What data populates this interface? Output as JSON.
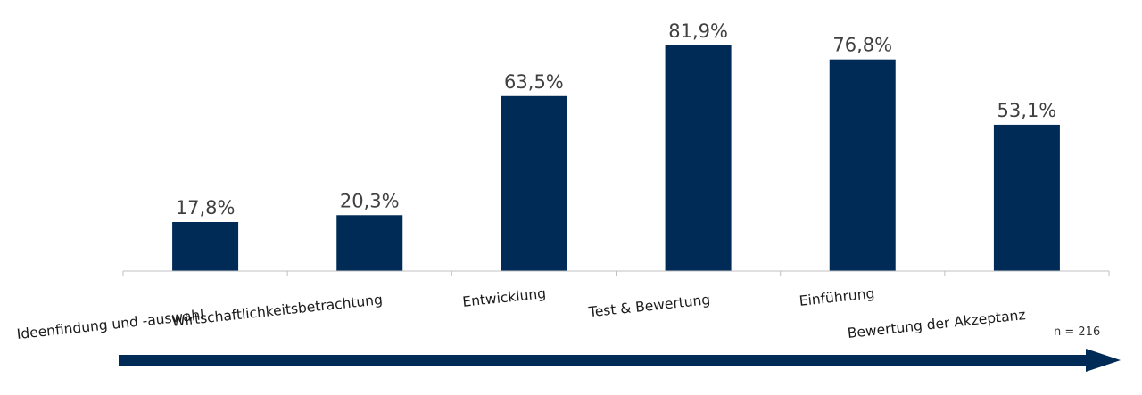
{
  "chart_data": {
    "type": "bar",
    "categories": [
      "Ideenfindung und -auswahl",
      "Wirtschaftlichkeitsbetrachtung",
      "Entwicklung",
      "Test & Bewertung",
      "Einführung",
      "Bewertung der Akzeptanz"
    ],
    "values": [
      17.8,
      20.3,
      63.5,
      81.9,
      76.8,
      53.1
    ],
    "value_labels": [
      "17,8%",
      "20,3%",
      "63,5%",
      "81,9%",
      "76,8%",
      "53,1%"
    ],
    "ylim": [
      0,
      100
    ],
    "grid": false,
    "legend": "none",
    "bar_color": "#002b57",
    "arrow_color": "#002b57",
    "sample_note": "n = 216"
  }
}
